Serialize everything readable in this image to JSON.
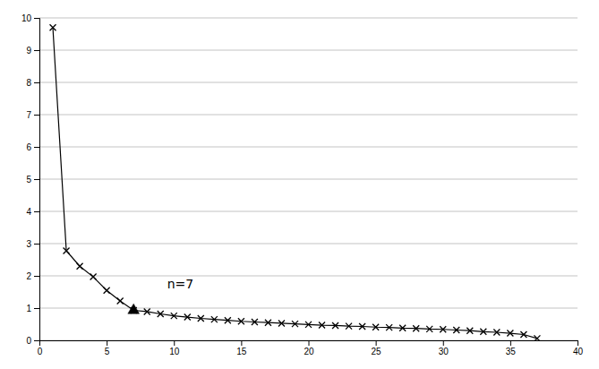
{
  "chart_data": {
    "type": "line",
    "x": [
      1,
      2,
      3,
      4,
      5,
      6,
      7,
      8,
      9,
      10,
      11,
      12,
      13,
      14,
      15,
      16,
      17,
      18,
      19,
      20,
      21,
      22,
      23,
      24,
      25,
      26,
      27,
      28,
      29,
      30,
      31,
      32,
      33,
      34,
      35,
      36,
      37
    ],
    "series": [
      {
        "type": "line",
        "marker": "x",
        "color": "#000000",
        "values": [
          9.7,
          2.78,
          2.3,
          1.97,
          1.55,
          1.22,
          0.93,
          0.89,
          0.82,
          0.76,
          0.72,
          0.68,
          0.65,
          0.62,
          0.59,
          0.57,
          0.55,
          0.53,
          0.51,
          0.49,
          0.47,
          0.46,
          0.44,
          0.43,
          0.41,
          0.4,
          0.38,
          0.37,
          0.35,
          0.34,
          0.32,
          0.3,
          0.27,
          0.25,
          0.22,
          0.18,
          0.06
        ]
      },
      {
        "type": "scatter",
        "marker": "triangle",
        "color": "#000000",
        "x": [
          7
        ],
        "values": [
          0.93
        ]
      }
    ],
    "annotations": [
      {
        "text": "n=7",
        "x": 9.5,
        "y": 1.62
      }
    ],
    "xlim": [
      0,
      40
    ],
    "ylim": [
      0,
      10
    ],
    "xticks": [
      0,
      5,
      10,
      15,
      20,
      25,
      30,
      35,
      40
    ],
    "yticks": [
      0,
      1,
      2,
      3,
      4,
      5,
      6,
      7,
      8,
      9,
      10
    ],
    "grid": "y"
  }
}
